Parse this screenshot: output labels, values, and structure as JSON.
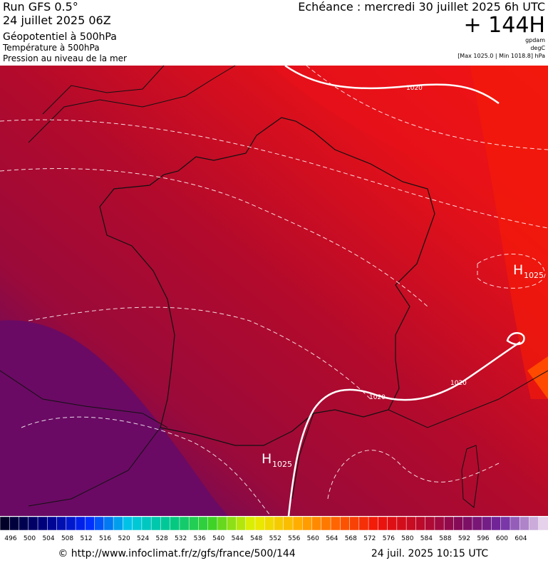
{
  "header": {
    "run": "Run GFS 0.5°",
    "date": "24 juillet 2025 06Z",
    "fields": [
      "Géopotentiel à 500hPa",
      "Température à 500hPa",
      "Pression au niveau de la mer"
    ],
    "valid": "Echéance : mercredi 30 juillet 2025 6h UTC",
    "lead": "+ 144H",
    "units": [
      "gpdam",
      "degC",
      "[Max 1025.0 | Min 1018.8] hPa"
    ]
  },
  "map": {
    "isobar_labels": [
      "1020",
      "1020",
      "1020"
    ],
    "highs": [
      {
        "letter": "H",
        "value": "1025"
      },
      {
        "letter": "H",
        "value": "1025"
      }
    ]
  },
  "scale": {
    "labels": [
      496,
      500,
      504,
      508,
      512,
      516,
      520,
      524,
      528,
      532,
      536,
      540,
      544,
      548,
      552,
      556,
      560,
      564,
      568,
      572,
      576,
      580,
      584,
      588,
      592,
      596,
      600,
      604
    ]
  },
  "footer": {
    "source": "© http://www.infoclimat.fr/z/gfs/france/500/144",
    "timestamp": "24 juil. 2025 10:15 UTC"
  }
}
